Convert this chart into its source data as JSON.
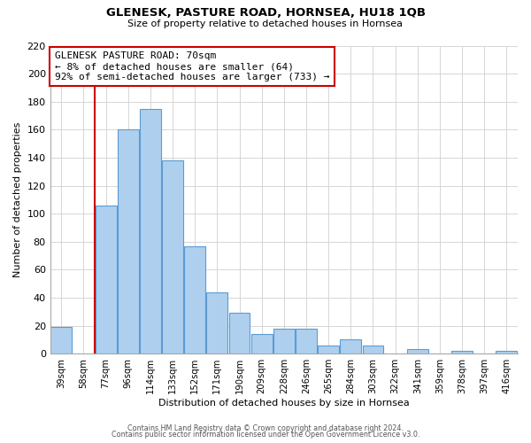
{
  "title": "GLENESK, PASTURE ROAD, HORNSEA, HU18 1QB",
  "subtitle": "Size of property relative to detached houses in Hornsea",
  "xlabel": "Distribution of detached houses by size in Hornsea",
  "ylabel": "Number of detached properties",
  "bar_color": "#aed0ee",
  "bar_edge_color": "#5b9bd5",
  "categories": [
    "39sqm",
    "58sqm",
    "77sqm",
    "96sqm",
    "114sqm",
    "133sqm",
    "152sqm",
    "171sqm",
    "190sqm",
    "209sqm",
    "228sqm",
    "246sqm",
    "265sqm",
    "284sqm",
    "303sqm",
    "322sqm",
    "341sqm",
    "359sqm",
    "378sqm",
    "397sqm",
    "416sqm"
  ],
  "values": [
    19,
    0,
    106,
    160,
    175,
    138,
    77,
    44,
    29,
    14,
    18,
    18,
    6,
    10,
    6,
    0,
    3,
    0,
    2,
    0,
    2
  ],
  "ylim": [
    0,
    220
  ],
  "yticks": [
    0,
    20,
    40,
    60,
    80,
    100,
    120,
    140,
    160,
    180,
    200,
    220
  ],
  "property_line_color": "#cc0000",
  "annotation_title": "GLENESK PASTURE ROAD: 70sqm",
  "annotation_line1": "← 8% of detached houses are smaller (64)",
  "annotation_line2": "92% of semi-detached houses are larger (733) →",
  "annotation_box_color": "#ffffff",
  "annotation_box_edge": "#cc0000",
  "footer1": "Contains HM Land Registry data © Crown copyright and database right 2024.",
  "footer2": "Contains public sector information licensed under the Open Government Licence v3.0.",
  "background_color": "#ffffff",
  "grid_color": "#d0d0d0"
}
